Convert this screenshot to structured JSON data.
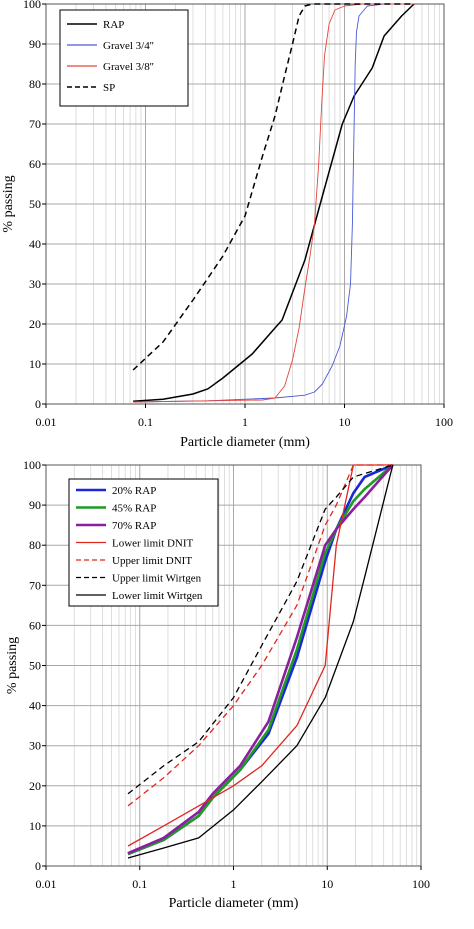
{
  "figure": {
    "background": "#ffffff"
  },
  "chart_data": [
    {
      "type": "line",
      "panel": "top",
      "xscale": "log",
      "xlim": [
        0.01,
        100
      ],
      "ylim": [
        0,
        100
      ],
      "xlabel": "Particle diameter (mm)",
      "ylabel": "% passing",
      "grid": true,
      "legend_position": "top-left",
      "xticks": [
        {
          "value": 0.01,
          "label": "0.01"
        },
        {
          "value": 0.1,
          "label": "0.1"
        },
        {
          "value": 1,
          "label": "1"
        },
        {
          "value": 10,
          "label": "10"
        },
        {
          "value": 100,
          "label": "100"
        }
      ],
      "yticks": [
        {
          "value": 0,
          "label": "0"
        },
        {
          "value": 10,
          "label": "10"
        },
        {
          "value": 20,
          "label": "20"
        },
        {
          "value": 30,
          "label": "30"
        },
        {
          "value": 40,
          "label": "40"
        },
        {
          "value": 50,
          "label": "50"
        },
        {
          "value": 60,
          "label": "60"
        },
        {
          "value": 70,
          "label": "70"
        },
        {
          "value": 80,
          "label": "80"
        },
        {
          "value": 90,
          "label": "90"
        },
        {
          "value": 100,
          "label": "100"
        }
      ],
      "series": [
        {
          "name": "RAP",
          "color": "#000000",
          "dash": "solid",
          "width": 1.5,
          "points": [
            [
              0.075,
              0.7
            ],
            [
              0.15,
              1.2
            ],
            [
              0.3,
              2.5
            ],
            [
              0.425,
              3.8
            ],
            [
              0.6,
              6.5
            ],
            [
              1.18,
              12.5
            ],
            [
              2.0,
              19
            ],
            [
              2.36,
              21
            ],
            [
              4.0,
              36
            ],
            [
              6.0,
              52
            ],
            [
              9.5,
              70
            ],
            [
              12.5,
              77
            ],
            [
              19,
              84
            ],
            [
              25,
              92
            ],
            [
              37.5,
              97
            ],
            [
              50,
              100
            ]
          ]
        },
        {
          "name": "Gravel 3/4''",
          "color": "#4a5bd6",
          "dash": "solid",
          "width": 0.9,
          "points": [
            [
              0.075,
              0.5
            ],
            [
              0.425,
              0.8
            ],
            [
              2.0,
              1.5
            ],
            [
              4.0,
              2.2
            ],
            [
              5.0,
              3.0
            ],
            [
              6.0,
              5.0
            ],
            [
              7.5,
              9.5
            ],
            [
              9.0,
              14.5
            ],
            [
              10.5,
              22
            ],
            [
              11.5,
              30
            ],
            [
              12.0,
              45
            ],
            [
              12.3,
              60
            ],
            [
              12.6,
              75
            ],
            [
              12.8,
              85
            ],
            [
              13.2,
              93
            ],
            [
              14,
              97
            ],
            [
              17,
              99.5
            ],
            [
              25,
              100
            ],
            [
              50,
              100
            ]
          ]
        },
        {
          "name": "Gravel 3/8''",
          "color": "#e8453c",
          "dash": "solid",
          "width": 0.9,
          "points": [
            [
              0.075,
              0.5
            ],
            [
              0.425,
              0.8
            ],
            [
              1.5,
              1.0
            ],
            [
              2.0,
              1.5
            ],
            [
              2.5,
              4.5
            ],
            [
              3.0,
              11
            ],
            [
              3.5,
              19
            ],
            [
              4.0,
              29
            ],
            [
              4.5,
              37
            ],
            [
              5.0,
              45
            ],
            [
              5.5,
              60
            ],
            [
              5.9,
              75
            ],
            [
              6.3,
              87
            ],
            [
              7.0,
              95
            ],
            [
              8.0,
              98.5
            ],
            [
              10,
              99.5
            ],
            [
              15,
              100
            ],
            [
              50,
              100
            ]
          ]
        },
        {
          "name": "SP",
          "color": "#000000",
          "dash": "dashed",
          "width": 1.5,
          "points": [
            [
              0.075,
              8.5
            ],
            [
              0.15,
              15.5
            ],
            [
              0.3,
              26
            ],
            [
              0.425,
              31.5
            ],
            [
              0.6,
              37
            ],
            [
              1.0,
              47
            ],
            [
              1.5,
              62
            ],
            [
              2.0,
              72
            ],
            [
              2.5,
              82
            ],
            [
              3.0,
              90
            ],
            [
              3.5,
              97
            ],
            [
              4.0,
              99.5
            ],
            [
              4.75,
              100
            ],
            [
              10,
              100
            ],
            [
              50,
              100
            ]
          ]
        }
      ]
    },
    {
      "type": "line",
      "panel": "bottom",
      "xscale": "log",
      "xlim": [
        0.01,
        100
      ],
      "ylim": [
        0,
        100
      ],
      "xlabel": "Particle diameter (mm)",
      "ylabel": "% passing",
      "grid": true,
      "legend_position": "top-left",
      "xticks": [
        {
          "value": 0.01,
          "label": "0.01"
        },
        {
          "value": 0.1,
          "label": "0.1"
        },
        {
          "value": 1,
          "label": "1"
        },
        {
          "value": 10,
          "label": "10"
        },
        {
          "value": 100,
          "label": "100"
        }
      ],
      "yticks": [
        {
          "value": 0,
          "label": "0"
        },
        {
          "value": 10,
          "label": "10"
        },
        {
          "value": 20,
          "label": "20"
        },
        {
          "value": 30,
          "label": "30"
        },
        {
          "value": 40,
          "label": "40"
        },
        {
          "value": 50,
          "label": "50"
        },
        {
          "value": 60,
          "label": "60"
        },
        {
          "value": 70,
          "label": "70"
        },
        {
          "value": 80,
          "label": "80"
        },
        {
          "value": 90,
          "label": "90"
        },
        {
          "value": 100,
          "label": "100"
        }
      ],
      "series": [
        {
          "name": "20% RAP",
          "color": "#1a27d9",
          "dash": "solid",
          "width": 2.6,
          "points": [
            [
              0.075,
              3
            ],
            [
              0.18,
              6.5
            ],
            [
              0.425,
              12.5
            ],
            [
              0.6,
              17
            ],
            [
              1.18,
              24
            ],
            [
              2.36,
              33
            ],
            [
              4.75,
              52
            ],
            [
              9.5,
              76
            ],
            [
              12.5,
              84
            ],
            [
              19,
              93
            ],
            [
              25,
              97
            ],
            [
              50,
              100
            ]
          ]
        },
        {
          "name": "45% RAP",
          "color": "#1f9a22",
          "dash": "solid",
          "width": 2.6,
          "points": [
            [
              0.075,
              3
            ],
            [
              0.18,
              6.5
            ],
            [
              0.425,
              12.5
            ],
            [
              0.6,
              17
            ],
            [
              1.18,
              24
            ],
            [
              2.36,
              34
            ],
            [
              4.75,
              54
            ],
            [
              9.5,
              78
            ],
            [
              12.5,
              84
            ],
            [
              19,
              91
            ],
            [
              25,
              94
            ],
            [
              50,
              100
            ]
          ]
        },
        {
          "name": "70% RAP",
          "color": "#8a1fa0",
          "dash": "solid",
          "width": 2.6,
          "points": [
            [
              0.075,
              3.2
            ],
            [
              0.18,
              7
            ],
            [
              0.425,
              13.5
            ],
            [
              0.6,
              18
            ],
            [
              1.18,
              25
            ],
            [
              2.36,
              36
            ],
            [
              4.75,
              57
            ],
            [
              9.5,
              80
            ],
            [
              12.5,
              84
            ],
            [
              19,
              89
            ],
            [
              25,
              92
            ],
            [
              50,
              100
            ]
          ]
        },
        {
          "name": "Lower limit DNIT",
          "color": "#e0271e",
          "dash": "solid",
          "width": 1.3,
          "points": [
            [
              0.075,
              5
            ],
            [
              0.18,
              10
            ],
            [
              0.425,
              15
            ],
            [
              1.0,
              20
            ],
            [
              2.0,
              25
            ],
            [
              4.75,
              35
            ],
            [
              9.5,
              50
            ],
            [
              12.5,
              80
            ],
            [
              19,
              100
            ],
            [
              50,
              100
            ]
          ]
        },
        {
          "name": "Upper limit DNIT",
          "color": "#e0271e",
          "dash": "dashed",
          "width": 1.3,
          "points": [
            [
              0.075,
              15
            ],
            [
              0.18,
              22
            ],
            [
              0.425,
              30
            ],
            [
              1.0,
              40
            ],
            [
              2.0,
              50
            ],
            [
              4.75,
              65
            ],
            [
              9.5,
              85
            ],
            [
              12.5,
              90
            ],
            [
              19,
              100
            ],
            [
              50,
              100
            ]
          ]
        },
        {
          "name": "Upper limit Wirtgen",
          "color": "#000000",
          "dash": "dashed",
          "width": 1.3,
          "points": [
            [
              0.075,
              18
            ],
            [
              0.18,
              25
            ],
            [
              0.425,
              31
            ],
            [
              1.0,
              42
            ],
            [
              2.0,
              55
            ],
            [
              4.75,
              71
            ],
            [
              9.5,
              89
            ],
            [
              12.5,
              92
            ],
            [
              19,
              97
            ],
            [
              50,
              100
            ]
          ]
        },
        {
          "name": "Lower limit Wirtgen",
          "color": "#000000",
          "dash": "solid",
          "width": 1.3,
          "points": [
            [
              0.075,
              2
            ],
            [
              0.18,
              4.5
            ],
            [
              0.425,
              7
            ],
            [
              1.0,
              14
            ],
            [
              2.0,
              21
            ],
            [
              4.75,
              30
            ],
            [
              9.5,
              42
            ],
            [
              19,
              61
            ],
            [
              25,
              72
            ],
            [
              50,
              100
            ]
          ]
        }
      ]
    }
  ]
}
